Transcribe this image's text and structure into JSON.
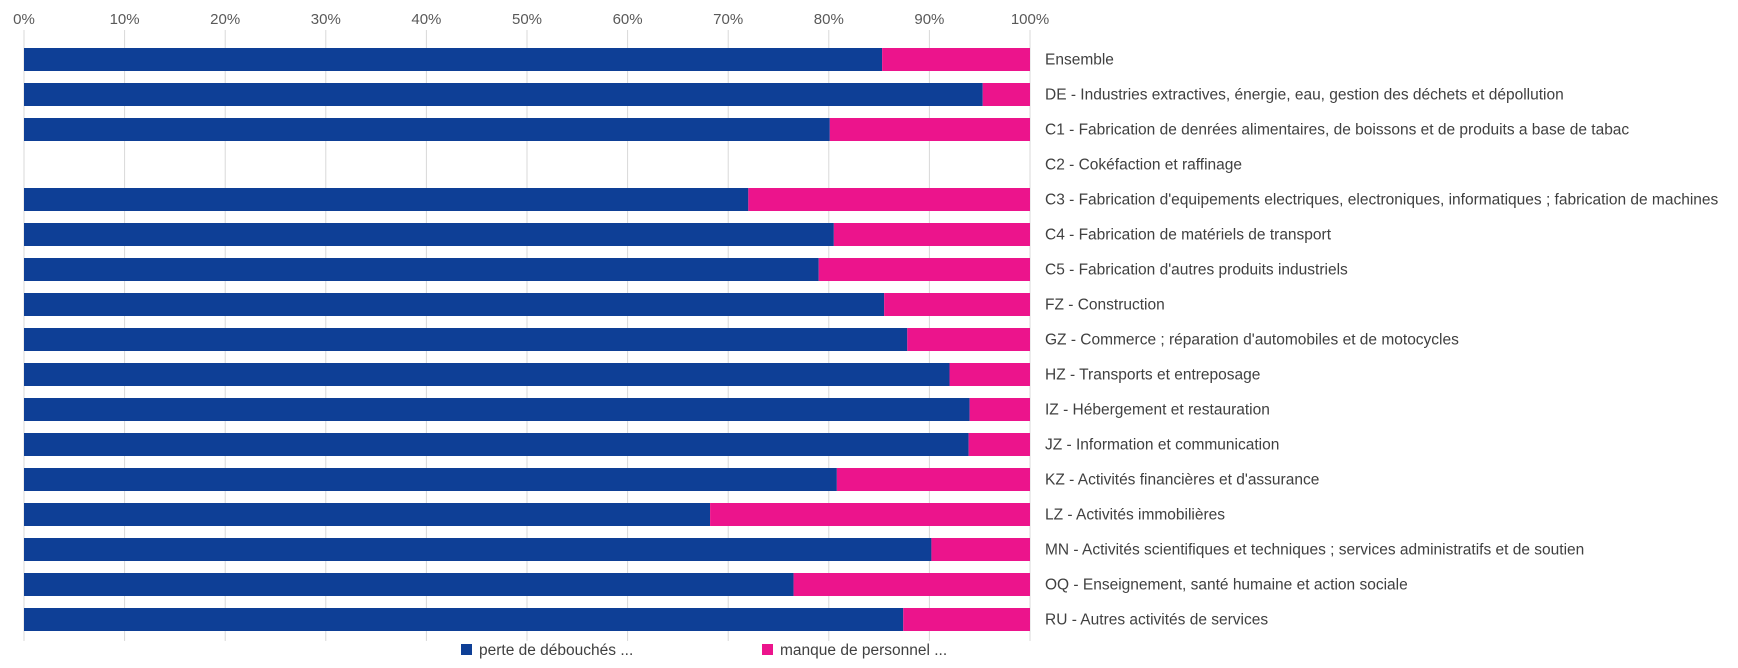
{
  "chart_data": {
    "type": "bar",
    "orientation": "horizontal",
    "stacked": "percent",
    "title": "",
    "xlabel": "",
    "ylabel": "",
    "xlim": [
      0,
      100
    ],
    "x_ticks": [
      "0%",
      "10%",
      "20%",
      "30%",
      "40%",
      "50%",
      "60%",
      "70%",
      "80%",
      "90%",
      "100%"
    ],
    "x_axis_position": "top",
    "grid": true,
    "legend_position": "bottom",
    "categories": [
      "Ensemble",
      "DE - Industries extractives,  énergie, eau, gestion des déchets et dépollution",
      "C1 - Fabrication de denrées alimentaires, de boissons et  de produits a base de tabac",
      "C2 - Cokéfaction et raffinage",
      "C3 - Fabrication d'equipements electriques, electroniques, informatiques ; fabrication de machines",
      "C4 - Fabrication de matériels de transport",
      "C5 - Fabrication d'autres produits industriels",
      "FZ - Construction",
      "GZ - Commerce ; réparation d'automobiles et de motocycles",
      "HZ - Transports et entreposage",
      "IZ - Hébergement et restauration",
      "JZ - Information et communication",
      "KZ - Activités financières et d'assurance",
      "LZ - Activités immobilières",
      "MN - Activités scientifiques et techniques ; services administratifs et de soutien",
      "OQ - Enseignement, santé humaine et action sociale",
      "RU - Autres activités de services"
    ],
    "series": [
      {
        "name": "perte de débouchés ...",
        "color": "#0e3f96",
        "values": [
          85.3,
          95.3,
          80.1,
          0,
          72.0,
          80.5,
          79.0,
          85.5,
          87.8,
          92.0,
          94.0,
          93.9,
          80.8,
          68.2,
          90.2,
          76.5,
          87.4
        ]
      },
      {
        "name": "manque de personnel ...",
        "color": "#ec148c",
        "values": [
          14.7,
          4.7,
          19.9,
          0,
          28.0,
          19.5,
          21.0,
          14.5,
          12.2,
          8.0,
          6.0,
          6.1,
          19.2,
          31.8,
          9.8,
          23.5,
          12.6
        ]
      }
    ]
  }
}
